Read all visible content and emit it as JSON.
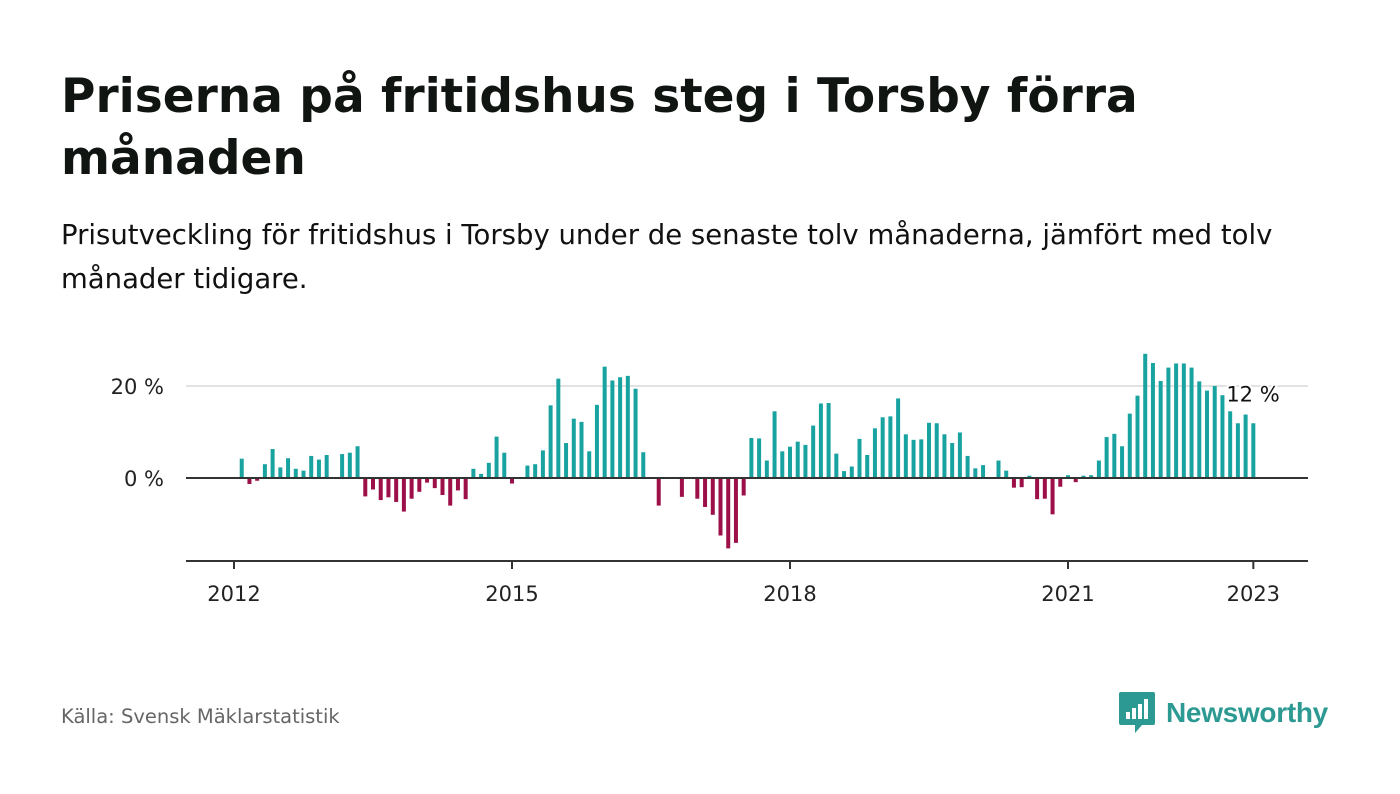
{
  "header": {
    "title": "Priserna på fritidshus steg i Torsby förra månaden",
    "subtitle": "Prisutveckling för fritidshus i Torsby under de senaste tolv månaderna, jämfört med tolv månader tidigare."
  },
  "footer": {
    "source": "Källa: Svensk Mäklarstatistik",
    "brand": "Newsworthy",
    "brand_icon": "newsworthy-logo-icon"
  },
  "colors": {
    "positive": "#18a2a0",
    "negative": "#9c0f48",
    "axis": "#333333",
    "grid": "#d9d9d9",
    "brand": "#2c9a92"
  },
  "chart_data": {
    "type": "bar",
    "ylim": [
      -18,
      28
    ],
    "y_ticks": [
      0,
      20
    ],
    "y_tick_labels": [
      "0 %",
      "20 %"
    ],
    "x_ticks": [
      "2012",
      "2015",
      "2018",
      "2021",
      "2023"
    ],
    "grid": "horizontal",
    "end_label": "12 %",
    "x": [
      "2012-02",
      "2012-03",
      "2012-04",
      "2012-05",
      "2012-06",
      "2012-07",
      "2012-08",
      "2012-09",
      "2012-10",
      "2012-11",
      "2012-12",
      "2013-01",
      "2013-02",
      "2013-03",
      "2013-04",
      "2013-05",
      "2013-06",
      "2013-07",
      "2013-08",
      "2013-09",
      "2013-10",
      "2013-11",
      "2013-12",
      "2014-01",
      "2014-02",
      "2014-03",
      "2014-04",
      "2014-05",
      "2014-06",
      "2014-07",
      "2014-08",
      "2014-09",
      "2014-10",
      "2014-11",
      "2014-12",
      "2015-01",
      "2015-02",
      "2015-03",
      "2015-04",
      "2015-05",
      "2015-06",
      "2015-07",
      "2015-08",
      "2015-09",
      "2015-10",
      "2015-11",
      "2015-12",
      "2016-01",
      "2016-02",
      "2016-03",
      "2016-04",
      "2016-05",
      "2016-06",
      "2016-07",
      "2016-08",
      "2016-09",
      "2016-10",
      "2016-11",
      "2016-12",
      "2017-01",
      "2017-02",
      "2017-03",
      "2017-04",
      "2017-05",
      "2017-06",
      "2017-07",
      "2017-08",
      "2017-09",
      "2017-10",
      "2017-11",
      "2017-12",
      "2018-01",
      "2018-02",
      "2018-03",
      "2018-04",
      "2018-05",
      "2018-06",
      "2018-07",
      "2018-08",
      "2018-09",
      "2018-10",
      "2018-11",
      "2018-12",
      "2019-01",
      "2019-02",
      "2019-03",
      "2019-04",
      "2019-05",
      "2019-06",
      "2019-07",
      "2019-08",
      "2019-09",
      "2019-10",
      "2019-11",
      "2019-12",
      "2020-01",
      "2020-02",
      "2020-03",
      "2020-04",
      "2020-05",
      "2020-06",
      "2020-07",
      "2020-08",
      "2020-09",
      "2020-10",
      "2020-11",
      "2020-12",
      "2021-01",
      "2021-02",
      "2021-03",
      "2021-04",
      "2021-05",
      "2021-06",
      "2021-07",
      "2021-08",
      "2021-09",
      "2021-10",
      "2021-11",
      "2021-12",
      "2022-01",
      "2022-02",
      "2022-03",
      "2022-04",
      "2022-05",
      "2022-06",
      "2022-07",
      "2022-08",
      "2022-09",
      "2022-10",
      "2022-11",
      "2022-12",
      "2023-01"
    ],
    "values": [
      4.2,
      -1.3,
      -0.6,
      3.0,
      6.3,
      2.3,
      4.3,
      2.0,
      1.6,
      4.8,
      4.0,
      5.0,
      null,
      5.2,
      5.5,
      6.9,
      -4.0,
      -2.5,
      -4.8,
      -4.2,
      -5.2,
      -7.3,
      -4.5,
      -3.0,
      -1.0,
      -2.2,
      -3.7,
      -6.0,
      -2.7,
      -4.6,
      2.0,
      0.9,
      3.3,
      9.0,
      5.5,
      -1.2,
      null,
      2.7,
      3.0,
      6.0,
      15.8,
      21.6,
      7.6,
      12.9,
      12.2,
      5.8,
      15.9,
      24.2,
      21.2,
      21.9,
      22.2,
      19.4,
      5.6,
      null,
      -6.0,
      null,
      null,
      -4.1,
      null,
      -4.5,
      -6.3,
      -8.0,
      -12.5,
      -15.3,
      -14.1,
      -3.8,
      8.7,
      8.6,
      3.8,
      14.5,
      5.8,
      6.8,
      7.9,
      7.2,
      11.4,
      16.2,
      16.3,
      5.3,
      1.5,
      2.5,
      8.5,
      5.0,
      10.8,
      13.2,
      13.4,
      17.3,
      9.5,
      8.3,
      8.4,
      12.0,
      11.9,
      9.5,
      7.6,
      9.9,
      4.8,
      2.1,
      2.8,
      null,
      3.8,
      1.6,
      -2.1,
      -2.0,
      0.5,
      -4.6,
      -4.5,
      -7.9,
      -1.9,
      0.6,
      -0.9,
      0.5,
      0.6,
      3.8,
      8.9,
      9.6,
      6.9,
      14.0,
      17.9,
      27.0,
      25.0,
      21.1,
      24.0,
      24.9,
      24.9,
      24.0,
      21.0,
      19.0,
      20.0,
      18.0,
      14.5,
      11.9,
      13.8,
      11.9
    ]
  }
}
